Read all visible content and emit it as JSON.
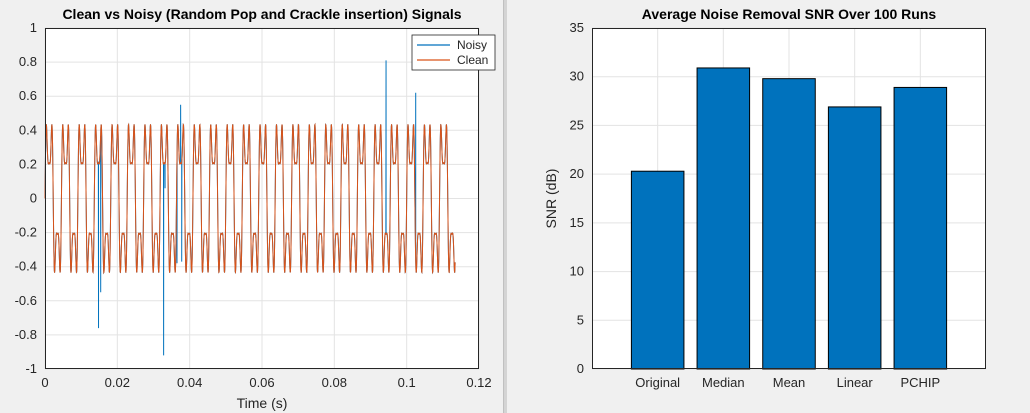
{
  "chart_data": [
    {
      "type": "line",
      "title": "Clean vs Noisy (Random Pop and Crackle insertion) Signals",
      "xlabel": "Time (s)",
      "ylabel": "",
      "xlim": [
        0,
        0.12
      ],
      "ylim": [
        -1,
        1
      ],
      "xticks": [
        "0",
        "0.02",
        "0.04",
        "0.06",
        "0.08",
        "0.1",
        "0.12"
      ],
      "yticks": [
        "1",
        "0.8",
        "0.6",
        "0.4",
        "0.2",
        "0",
        "-0.2",
        "-0.4",
        "-0.6",
        "-0.8",
        "-1"
      ],
      "grid": true,
      "legend_position": "top-right",
      "signal": {
        "t_end": 0.1134,
        "components": [
          {
            "freq_hz": 220,
            "amplitude": 0.35
          },
          {
            "freq_hz": 660,
            "amplitude": 0.22
          },
          {
            "freq_hz": 1100,
            "amplitude": 0.08
          }
        ]
      },
      "series": [
        {
          "name": "Noisy",
          "color": "#0072bd",
          "spikes": [
            {
              "t": 0.0148,
              "y": -0.76
            },
            {
              "t": 0.0154,
              "y": -0.55
            },
            {
              "t": 0.0328,
              "y": -0.92
            },
            {
              "t": 0.0332,
              "y": 0.06
            },
            {
              "t": 0.0365,
              "y": -0.38
            },
            {
              "t": 0.0375,
              "y": 0.55
            },
            {
              "t": 0.0378,
              "y": -0.37
            },
            {
              "t": 0.0943,
              "y": 0.81
            },
            {
              "t": 0.1025,
              "y": 0.62
            }
          ]
        },
        {
          "name": "Clean",
          "color": "#d95319"
        }
      ]
    },
    {
      "type": "bar",
      "title": "Average Noise Removal SNR Over 100 Runs",
      "xlabel": "",
      "ylabel": "SNR (dB)",
      "categories": [
        "Original",
        "Median",
        "Mean",
        "Linear",
        "PCHIP"
      ],
      "values": [
        20.3,
        30.9,
        29.8,
        26.9,
        28.9
      ],
      "ylim": [
        0,
        35
      ],
      "yticks": [
        "0",
        "5",
        "10",
        "15",
        "20",
        "25",
        "30",
        "35"
      ],
      "grid": true,
      "bar_color": "#0072bd"
    }
  ]
}
